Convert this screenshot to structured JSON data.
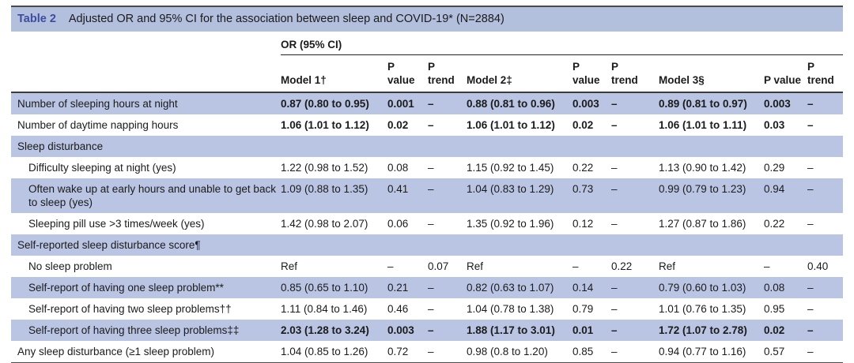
{
  "caption": {
    "label": "Table 2",
    "title": "Adjusted OR and 95% CI for the association between sleep and COVID-19* (N=2884)"
  },
  "header": {
    "group": "OR (95% CI)",
    "columns": [
      "",
      "Model 1†",
      "P\nvalue",
      "P\ntrend",
      "Model 2‡",
      "P\nvalue",
      "P\ntrend",
      "Model 3§",
      "P value",
      "P\ntrend"
    ]
  },
  "rows": [
    {
      "label": "Number of sleeping hours at night",
      "indent": false,
      "section": false,
      "shade": true,
      "bold": true,
      "cells": [
        "0.87 (0.80 to 0.95)",
        "0.001",
        "–",
        "0.88 (0.81 to 0.96)",
        "0.003",
        "–",
        "0.89 (0.81 to 0.97)",
        "0.003",
        "–"
      ]
    },
    {
      "label": "Number of daytime napping hours",
      "indent": false,
      "section": false,
      "shade": false,
      "bold": true,
      "cells": [
        "1.06 (1.01 to 1.12)",
        "0.02",
        "–",
        "1.06 (1.01 to 1.12)",
        "0.02",
        "–",
        "1.06 (1.01 to 1.11)",
        "0.03",
        "–"
      ]
    },
    {
      "label": "Sleep disturbance",
      "indent": false,
      "section": true,
      "shade": true,
      "bold": false,
      "cells": [
        "",
        "",
        "",
        "",
        "",
        "",
        "",
        "",
        ""
      ]
    },
    {
      "label": "Difficulty sleeping at night (yes)",
      "indent": true,
      "section": false,
      "shade": false,
      "bold": false,
      "cells": [
        "1.22 (0.98 to 1.52)",
        "0.08",
        "–",
        "1.15 (0.92 to 1.45)",
        "0.22",
        "–",
        "1.13 (0.90 to 1.42)",
        "0.29",
        "–"
      ]
    },
    {
      "label": "Often wake up at early hours and unable to get back to sleep (yes)",
      "indent": true,
      "section": false,
      "shade": true,
      "bold": false,
      "cells": [
        "1.09 (0.88 to 1.35)",
        "0.41",
        "–",
        "1.04 (0.83 to 1.29)",
        "0.73",
        "–",
        "0.99 (0.79 to 1.23)",
        "0.94",
        "–"
      ]
    },
    {
      "label": "Sleeping pill use >3 times/week (yes)",
      "indent": true,
      "section": false,
      "shade": false,
      "bold": false,
      "cells": [
        "1.42 (0.98 to 2.07)",
        "0.06",
        "–",
        "1.35 (0.92 to 1.96)",
        "0.12",
        "–",
        "1.27 (0.87 to 1.86)",
        "0.22",
        "–"
      ]
    },
    {
      "label": "Self-reported sleep disturbance score¶",
      "indent": false,
      "section": true,
      "shade": true,
      "bold": false,
      "cells": [
        "",
        "",
        "",
        "",
        "",
        "",
        "",
        "",
        ""
      ]
    },
    {
      "label": "No sleep problem",
      "indent": true,
      "section": false,
      "shade": false,
      "bold": false,
      "cells": [
        "Ref",
        "–",
        "0.07",
        "Ref",
        "–",
        "0.22",
        "Ref",
        "–",
        "0.40"
      ]
    },
    {
      "label": "Self-report of having one sleep problem**",
      "indent": true,
      "section": false,
      "shade": true,
      "bold": false,
      "cells": [
        "0.85 (0.65 to 1.10)",
        "0.21",
        "–",
        "0.82 (0.63 to 1.07)",
        "0.14",
        "–",
        "0.79 (0.60 to 1.03)",
        "0.08",
        "–"
      ]
    },
    {
      "label": "Self-report of having two sleep problems††",
      "indent": true,
      "section": false,
      "shade": false,
      "bold": false,
      "cells": [
        "1.11 (0.84 to 1.46)",
        "0.46",
        "–",
        "1.04 (0.78 to 1.38)",
        "0.79",
        "–",
        "1.01 (0.76 to 1.35)",
        "0.95",
        "–"
      ]
    },
    {
      "label": "Self-report of having three sleep problems‡‡",
      "indent": true,
      "section": false,
      "shade": true,
      "bold": true,
      "cells": [
        "2.03 (1.28 to 3.24)",
        "0.003",
        "–",
        "1.88 (1.17 to 3.01)",
        "0.01",
        "–",
        "1.72 (1.07 to 2.78)",
        "0.02",
        "–"
      ]
    },
    {
      "label": "Any sleep disturbance (≥1 sleep problem)",
      "indent": false,
      "section": false,
      "shade": false,
      "bold": false,
      "cells": [
        "1.04 (0.85 to 1.26)",
        "0.72",
        "–",
        "0.98 (0.8 to 1.20)",
        "0.85",
        "–",
        "0.94 (0.77 to 1.16)",
        "0.57",
        "–"
      ]
    }
  ],
  "colors": {
    "title_bar_bg": "#b2bfdd",
    "row_shade_bg": "#b9c5e3",
    "table_label_color": "#3c4da0",
    "rule_color": "#4a4a4a",
    "text_color": "#1b1b1b"
  }
}
